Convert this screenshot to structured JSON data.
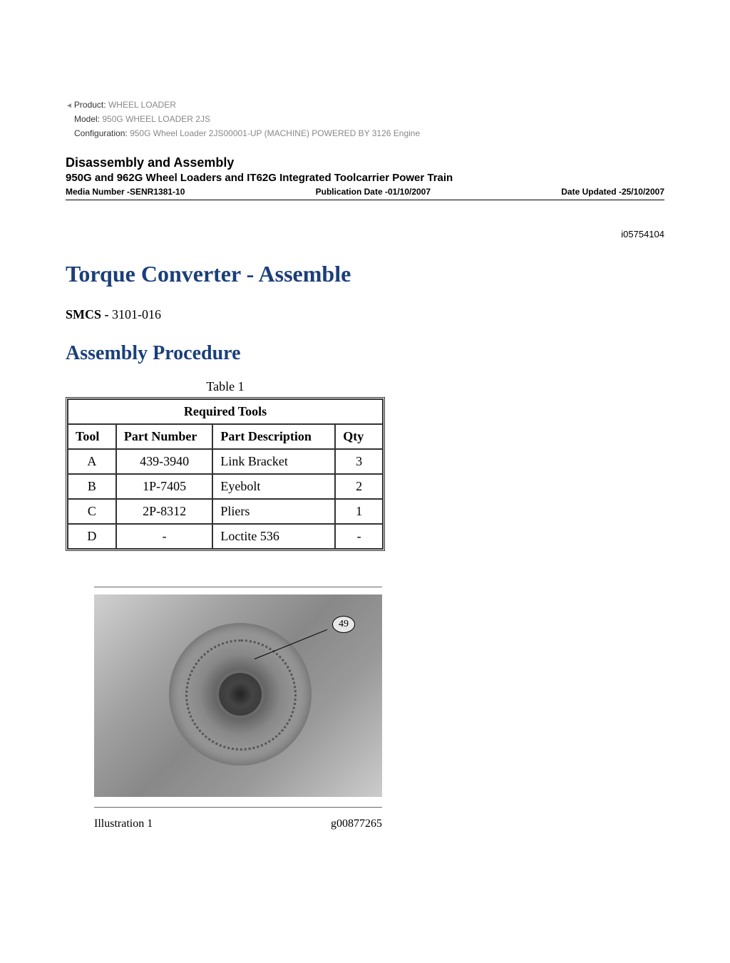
{
  "productInfo": {
    "productLabel": "Product:",
    "productValue": "WHEEL LOADER",
    "modelLabel": "Model:",
    "modelValue": "950G WHEEL LOADER 2JS",
    "configLabel": "Configuration:",
    "configValue": "950G Wheel Loader 2JS00001-UP (MACHINE) POWERED BY 3126 Engine"
  },
  "section": {
    "title": "Disassembly and Assembly",
    "subtitle": "950G and 962G Wheel Loaders and IT62G Integrated Toolcarrier Power Train",
    "mediaNumber": "Media Number -SENR1381-10",
    "pubDate": "Publication Date -01/10/2007",
    "dateUpdated": "Date Updated -25/10/2007"
  },
  "docId": "i05754104",
  "mainTitle": "Torque Converter - Assemble",
  "smcs": {
    "label": "SMCS -",
    "value": " 3101-016"
  },
  "subheading": "Assembly Procedure",
  "table": {
    "caption": "Table 1",
    "headerTitle": "Required Tools",
    "columns": {
      "tool": "Tool",
      "partNumber": "Part Number",
      "partDescription": "Part Description",
      "qty": "Qty"
    },
    "rows": [
      {
        "tool": "A",
        "partNumber": "439-3940",
        "partDescription": "Link Bracket",
        "qty": "3"
      },
      {
        "tool": "B",
        "partNumber": "1P-7405",
        "partDescription": "Eyebolt",
        "qty": "2"
      },
      {
        "tool": "C",
        "partNumber": "2P-8312",
        "partDescription": "Pliers",
        "qty": "1"
      },
      {
        "tool": "D",
        "partNumber": "-",
        "partDescription": "Loctite 536",
        "qty": "-"
      }
    ]
  },
  "illustration": {
    "calloutNumber": "49",
    "label": "Illustration 1",
    "code": "g00877265"
  },
  "colors": {
    "headingBlue": "#1b3f7a",
    "textBlack": "#000000",
    "textGray": "#888888",
    "borderColor": "#333333",
    "background": "#ffffff"
  },
  "typography": {
    "sansFont": "Verdana, Arial, sans-serif",
    "serifFont": "Times New Roman, Times, serif",
    "productInfoSize": 12,
    "sectionTitleSize": 18,
    "sectionSubtitleSize": 15,
    "metaRowSize": 12,
    "mainTitleSize": 32,
    "subheadingSize": 28,
    "bodySize": 18,
    "tableSize": 18
  },
  "layout": {
    "pageWidth": 1024,
    "pageHeight": 1351,
    "tableWidth": 448,
    "illustrationWidth": 404,
    "illustrationHeight": 284
  }
}
